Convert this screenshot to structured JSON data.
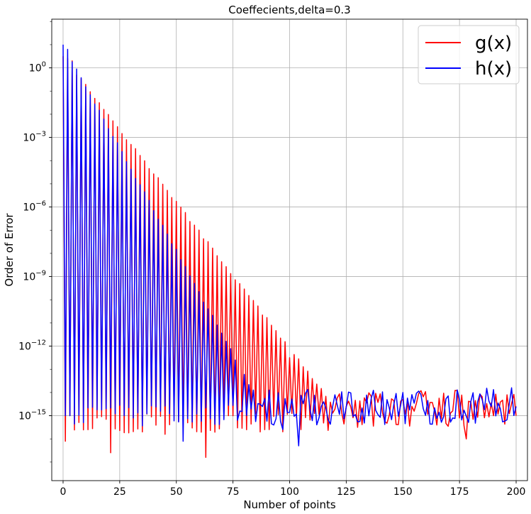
{
  "chart_data": {
    "type": "line",
    "title": "Coeffecients,delta=0.3",
    "xlabel": "Number of points",
    "ylabel": "Order of Error",
    "xlim": [
      -5,
      205
    ],
    "ylim_log10": [
      -17.8,
      2.1
    ],
    "yscale": "log",
    "grid": true,
    "legend_position": "top-right",
    "x_ticks": [
      0,
      25,
      50,
      75,
      100,
      125,
      150,
      175,
      200
    ],
    "y_ticks": [
      {
        "exp": 0,
        "label": "10⁰",
        "base": "10",
        "power": "0"
      },
      {
        "exp": -3,
        "label": "10⁻³",
        "base": "10",
        "power": "−3"
      },
      {
        "exp": -6,
        "label": "10⁻⁶",
        "base": "10",
        "power": "−6"
      },
      {
        "exp": -9,
        "label": "10⁻⁹",
        "base": "10",
        "power": "−9"
      },
      {
        "exp": -12,
        "label": "10⁻¹²",
        "base": "10",
        "power": "−12"
      },
      {
        "exp": -15,
        "label": "10⁻¹⁵",
        "base": "10",
        "power": "−15"
      }
    ],
    "series": [
      {
        "name": "g(x)",
        "color": "#ff0000",
        "decay_envelope_log10": {
          "start": 0.5,
          "slope_per_index": -0.126,
          "noise_floor": -14.4
        },
        "odd_index_log10": -15.3,
        "x_range": [
          0,
          200
        ],
        "samples_log10": [
          {
            "x": 0,
            "y": 0.5
          },
          {
            "x": 1,
            "y": -16.1
          },
          {
            "x": 2,
            "y": 0.4
          },
          {
            "x": 3,
            "y": -15.0
          },
          {
            "x": 4,
            "y": 0.3
          },
          {
            "x": 21,
            "y": -16.6
          },
          {
            "x": 35,
            "y": -15.7
          },
          {
            "x": 45,
            "y": -15.8
          },
          {
            "x": 63,
            "y": -16.8
          },
          {
            "x": 100,
            "y": -12.5
          },
          {
            "x": 110,
            "y": -13.4
          },
          {
            "x": 130,
            "y": -15.5
          },
          {
            "x": 150,
            "y": -14.3
          },
          {
            "x": 165,
            "y": -15.4
          },
          {
            "x": 178,
            "y": -16.0
          },
          {
            "x": 190,
            "y": -15.0
          },
          {
            "x": 200,
            "y": -15.0
          }
        ]
      },
      {
        "name": "h(x)",
        "color": "#0000ff",
        "decay_envelope_log10": {
          "start": 1.0,
          "slope_per_index": -0.178,
          "noise_floor": -14.3
        },
        "odd_index_log10": -15.0,
        "x_range": [
          0,
          200
        ],
        "samples_log10": [
          {
            "x": 0,
            "y": 1.0
          },
          {
            "x": 1,
            "y": -15.0
          },
          {
            "x": 2,
            "y": 0.8
          },
          {
            "x": 3,
            "y": -15.0
          },
          {
            "x": 9,
            "y": -15.3
          },
          {
            "x": 53,
            "y": -16.1
          },
          {
            "x": 78,
            "y": -14.8
          },
          {
            "x": 97,
            "y": -15.6
          },
          {
            "x": 104,
            "y": -16.3
          },
          {
            "x": 120,
            "y": -14.1
          },
          {
            "x": 150,
            "y": -14.0
          },
          {
            "x": 175,
            "y": -14.3
          },
          {
            "x": 198,
            "y": -13.8
          },
          {
            "x": 200,
            "y": -14.6
          }
        ]
      }
    ]
  }
}
